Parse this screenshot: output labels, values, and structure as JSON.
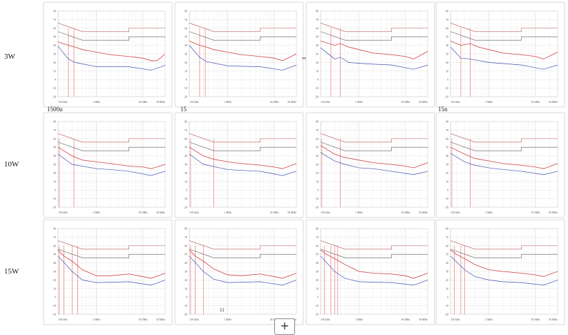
{
  "row_labels": [
    "3W",
    "10W",
    "15W"
  ],
  "stray_text": {
    "a": "1500u",
    "b": "15",
    "c": ",,",
    "d": "15n",
    "e": "11"
  },
  "plus_button": "+",
  "chart_data": {
    "type": "line",
    "grid": true,
    "x_scale": "log",
    "xlim_mhz": [
      0.15,
      30
    ],
    "ylim": [
      -20,
      80
    ],
    "yticks": [
      80,
      70,
      60,
      50,
      40,
      30,
      20,
      10,
      0,
      -10,
      -20
    ],
    "xtick_labels": [
      "150 kHz",
      "1 MHz",
      "10 MHz",
      "30 MHz"
    ],
    "xtick_values": [
      0.15,
      1,
      10,
      30
    ],
    "colors": {
      "peak": "#d04040",
      "average": "#4050b0",
      "qp_limit": "#c07070",
      "avg_limit": "#555555",
      "marker": "#e06060"
    },
    "qp_limit": [
      [
        0.15,
        66
      ],
      [
        0.5,
        56
      ],
      [
        5,
        56
      ],
      [
        5,
        60
      ],
      [
        30,
        60
      ]
    ],
    "avg_limit": [
      [
        0.15,
        56
      ],
      [
        0.5,
        46
      ],
      [
        5,
        46
      ],
      [
        5,
        50
      ],
      [
        30,
        50
      ]
    ],
    "plots": [
      {
        "row": "3W",
        "peak": [
          [
            0.15,
            44
          ],
          [
            0.25,
            40
          ],
          [
            0.35,
            38
          ],
          [
            0.5,
            35
          ],
          [
            1,
            32
          ],
          [
            2,
            29
          ],
          [
            5,
            27
          ],
          [
            10,
            25
          ],
          [
            15,
            22
          ],
          [
            20,
            22
          ],
          [
            30,
            30
          ]
        ],
        "average": [
          [
            0.15,
            39
          ],
          [
            0.25,
            24
          ],
          [
            0.35,
            20
          ],
          [
            1,
            15
          ],
          [
            5,
            15
          ],
          [
            15,
            11
          ],
          [
            25,
            15
          ],
          [
            30,
            17
          ]
        ],
        "markers": [
          0.25,
          0.33
        ]
      },
      {
        "row": "3W",
        "peak": [
          [
            0.15,
            45
          ],
          [
            0.25,
            40
          ],
          [
            0.35,
            38
          ],
          [
            0.5,
            35
          ],
          [
            1,
            32
          ],
          [
            2,
            29
          ],
          [
            5,
            27
          ],
          [
            10,
            25
          ],
          [
            15,
            22
          ],
          [
            30,
            30
          ]
        ],
        "average": [
          [
            0.15,
            40
          ],
          [
            0.25,
            26
          ],
          [
            0.35,
            21
          ],
          [
            1,
            16
          ],
          [
            5,
            15
          ],
          [
            15,
            11
          ],
          [
            30,
            17
          ]
        ],
        "markers": [
          0.25,
          0.33
        ]
      },
      {
        "row": "3W",
        "peak": [
          [
            0.15,
            45
          ],
          [
            0.3,
            40
          ],
          [
            0.4,
            42
          ],
          [
            0.6,
            38
          ],
          [
            1,
            35
          ],
          [
            2,
            31
          ],
          [
            5,
            29
          ],
          [
            10,
            27
          ],
          [
            15,
            24
          ],
          [
            30,
            33
          ]
        ],
        "average": [
          [
            0.15,
            37
          ],
          [
            0.3,
            24
          ],
          [
            0.4,
            26
          ],
          [
            0.6,
            20
          ],
          [
            1,
            19
          ],
          [
            2,
            18
          ],
          [
            5,
            17
          ],
          [
            15,
            12
          ],
          [
            30,
            17
          ]
        ],
        "markers": [
          0.25,
          0.4
        ]
      },
      {
        "row": "3W",
        "peak": [
          [
            0.15,
            45
          ],
          [
            0.25,
            40
          ],
          [
            0.4,
            42
          ],
          [
            0.6,
            38
          ],
          [
            1,
            35
          ],
          [
            2,
            31
          ],
          [
            5,
            29
          ],
          [
            10,
            27
          ],
          [
            15,
            24
          ],
          [
            30,
            32
          ]
        ],
        "average": [
          [
            0.15,
            38
          ],
          [
            0.25,
            25
          ],
          [
            0.4,
            24
          ],
          [
            1,
            20
          ],
          [
            5,
            17
          ],
          [
            15,
            12
          ],
          [
            30,
            17
          ]
        ],
        "markers": [
          0.25,
          0.4
        ]
      },
      {
        "row": "10W",
        "peak": [
          [
            0.15,
            50
          ],
          [
            0.3,
            40
          ],
          [
            0.5,
            35
          ],
          [
            1,
            33
          ],
          [
            2,
            31
          ],
          [
            5,
            28
          ],
          [
            10,
            27
          ],
          [
            15,
            25
          ],
          [
            30,
            30
          ]
        ],
        "average": [
          [
            0.15,
            42
          ],
          [
            0.3,
            30
          ],
          [
            1,
            25
          ],
          [
            2,
            24
          ],
          [
            5,
            22
          ],
          [
            15,
            17
          ],
          [
            30,
            22
          ]
        ],
        "markers": [
          0.16,
          0.33
        ]
      },
      {
        "row": "10W",
        "peak": [
          [
            0.15,
            50
          ],
          [
            0.3,
            40
          ],
          [
            0.5,
            36
          ],
          [
            1,
            33
          ],
          [
            2,
            31
          ],
          [
            5,
            29
          ],
          [
            10,
            27
          ],
          [
            15,
            25
          ],
          [
            30,
            31
          ]
        ],
        "average": [
          [
            0.15,
            42
          ],
          [
            0.3,
            30
          ],
          [
            1,
            24
          ],
          [
            2,
            23
          ],
          [
            5,
            22
          ],
          [
            15,
            17
          ],
          [
            30,
            22
          ]
        ],
        "markers": [
          0.16,
          0.5
        ]
      },
      {
        "row": "10W",
        "peak": [
          [
            0.15,
            52
          ],
          [
            0.3,
            42
          ],
          [
            0.5,
            38
          ],
          [
            1,
            35
          ],
          [
            2,
            32
          ],
          [
            5,
            30
          ],
          [
            10,
            28
          ],
          [
            15,
            26
          ],
          [
            30,
            32
          ]
        ],
        "average": [
          [
            0.15,
            44
          ],
          [
            0.3,
            34
          ],
          [
            0.5,
            30
          ],
          [
            1,
            26
          ],
          [
            2,
            25
          ],
          [
            5,
            22
          ],
          [
            15,
            18
          ],
          [
            30,
            22
          ]
        ],
        "markers": [
          0.16,
          0.4
        ]
      },
      {
        "row": "10W",
        "peak": [
          [
            0.15,
            50
          ],
          [
            0.3,
            42
          ],
          [
            0.5,
            37
          ],
          [
            1,
            34
          ],
          [
            2,
            31
          ],
          [
            5,
            29
          ],
          [
            10,
            27
          ],
          [
            15,
            25
          ],
          [
            30,
            31
          ]
        ],
        "average": [
          [
            0.15,
            43
          ],
          [
            0.3,
            33
          ],
          [
            0.5,
            29
          ],
          [
            1,
            26
          ],
          [
            2,
            24
          ],
          [
            5,
            22
          ],
          [
            15,
            18
          ],
          [
            30,
            22
          ]
        ],
        "markers": [
          0.16,
          0.4
        ]
      },
      {
        "row": "15W",
        "peak": [
          [
            0.15,
            55
          ],
          [
            0.2,
            48
          ],
          [
            0.3,
            42
          ],
          [
            0.5,
            32
          ],
          [
            1,
            25
          ],
          [
            2,
            25
          ],
          [
            5,
            27
          ],
          [
            10,
            24
          ],
          [
            15,
            22
          ],
          [
            30,
            28
          ]
        ],
        "average": [
          [
            0.15,
            48
          ],
          [
            0.3,
            30
          ],
          [
            0.5,
            20
          ],
          [
            1,
            17
          ],
          [
            5,
            18
          ],
          [
            15,
            14
          ],
          [
            30,
            20
          ]
        ],
        "markers": [
          0.16,
          0.2,
          0.3,
          0.4
        ]
      },
      {
        "row": "15W",
        "peak": [
          [
            0.15,
            55
          ],
          [
            0.2,
            48
          ],
          [
            0.3,
            42
          ],
          [
            0.5,
            33
          ],
          [
            1,
            26
          ],
          [
            2,
            25
          ],
          [
            5,
            27
          ],
          [
            10,
            24
          ],
          [
            15,
            22
          ],
          [
            30,
            28
          ]
        ],
        "average": [
          [
            0.15,
            48
          ],
          [
            0.3,
            30
          ],
          [
            0.5,
            21
          ],
          [
            1,
            17
          ],
          [
            5,
            18
          ],
          [
            15,
            14
          ],
          [
            30,
            20
          ]
        ],
        "markers": [
          0.16,
          0.2,
          0.3
        ]
      },
      {
        "row": "15W",
        "peak": [
          [
            0.15,
            55
          ],
          [
            0.2,
            50
          ],
          [
            0.3,
            45
          ],
          [
            0.5,
            38
          ],
          [
            1,
            30
          ],
          [
            2,
            28
          ],
          [
            5,
            27
          ],
          [
            10,
            25
          ],
          [
            15,
            22
          ],
          [
            30,
            28
          ]
        ],
        "average": [
          [
            0.15,
            48
          ],
          [
            0.3,
            30
          ],
          [
            0.5,
            22
          ],
          [
            1,
            18
          ],
          [
            5,
            17
          ],
          [
            15,
            14
          ],
          [
            30,
            20
          ]
        ],
        "markers": [
          0.18,
          0.25,
          0.3,
          0.35
        ]
      },
      {
        "row": "15W",
        "peak": [
          [
            0.15,
            55
          ],
          [
            0.2,
            50
          ],
          [
            0.3,
            45
          ],
          [
            0.5,
            38
          ],
          [
            1,
            32
          ],
          [
            2,
            30
          ],
          [
            5,
            28
          ],
          [
            10,
            26
          ],
          [
            15,
            24
          ],
          [
            30,
            30
          ]
        ],
        "average": [
          [
            0.15,
            48
          ],
          [
            0.3,
            32
          ],
          [
            0.5,
            24
          ],
          [
            1,
            20
          ],
          [
            2,
            18
          ],
          [
            5,
            17
          ],
          [
            15,
            14
          ],
          [
            30,
            20
          ]
        ],
        "markers": [
          0.18,
          0.25,
          0.3
        ]
      }
    ]
  }
}
